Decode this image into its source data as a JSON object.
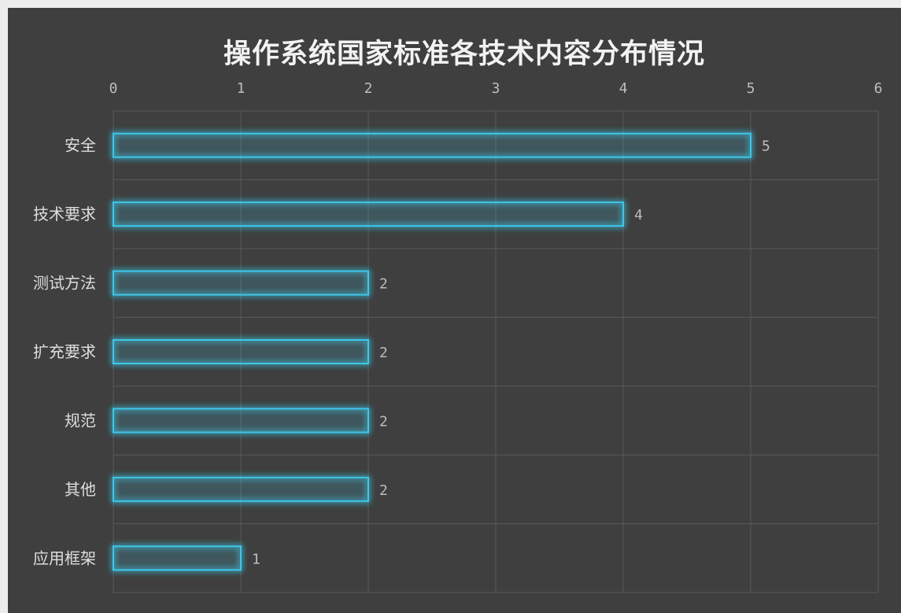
{
  "chart_data": {
    "type": "bar",
    "orientation": "horizontal",
    "title": "操作系统国家标准各技术内容分布情况",
    "categories": [
      "安全",
      "技术要求",
      "测试方法",
      "扩充要求",
      "规范",
      "其他",
      "应用框架"
    ],
    "values": [
      5,
      4,
      2,
      2,
      2,
      2,
      1
    ],
    "xlim": [
      0,
      6
    ],
    "xticks": [
      0,
      1,
      2,
      3,
      4,
      5,
      6
    ],
    "xaxis_position": "top",
    "grid": true,
    "data_labels": true,
    "bar_color": "#3cc8e8"
  }
}
